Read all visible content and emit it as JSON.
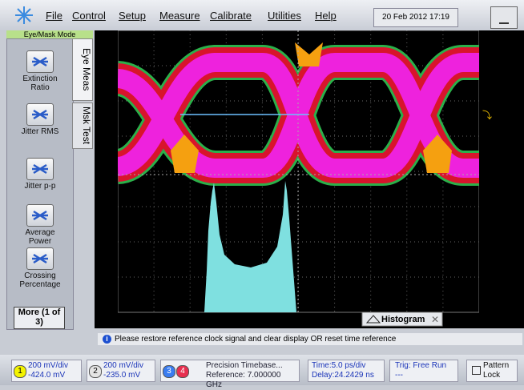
{
  "menu": {
    "items": [
      "File",
      "Control",
      "Setup",
      "Measure",
      "Calibrate",
      "Utilities",
      "Help"
    ],
    "datetime": "20 Feb 2012  17:19"
  },
  "mode_label": "Eye/Mask Mode",
  "tabs": [
    "Eye Meas",
    "Msk Test"
  ],
  "buttons": [
    "Extinction Ratio",
    "Jitter RMS",
    "Jitter p-p",
    "Average Power",
    "Crossing Percentage"
  ],
  "more_button": "More (1 of 3)",
  "histogram_label": "Histogram",
  "info_message": "Please restore reference clock signal and clear display OR reset time reference",
  "status": {
    "ch1": {
      "number": "1",
      "scale": "200 mV/div",
      "offset": "-424.0 mV"
    },
    "ch2": {
      "number": "2",
      "scale": "200 mV/div",
      "offset": "-235.0 mV"
    },
    "ch3": {
      "number": "3"
    },
    "ch4": {
      "number": "4"
    },
    "timebase": {
      "title": "Precision Timebase...",
      "reference": "Reference: 7.000000 GHz"
    },
    "time": {
      "scale": "Time:5.0 ps/div",
      "delay": "Delay:24.2429 ns"
    },
    "trigger": {
      "mode": "Trig: Free Run",
      "detail": "---"
    },
    "pattern_lock": "Pattern Lock"
  }
}
